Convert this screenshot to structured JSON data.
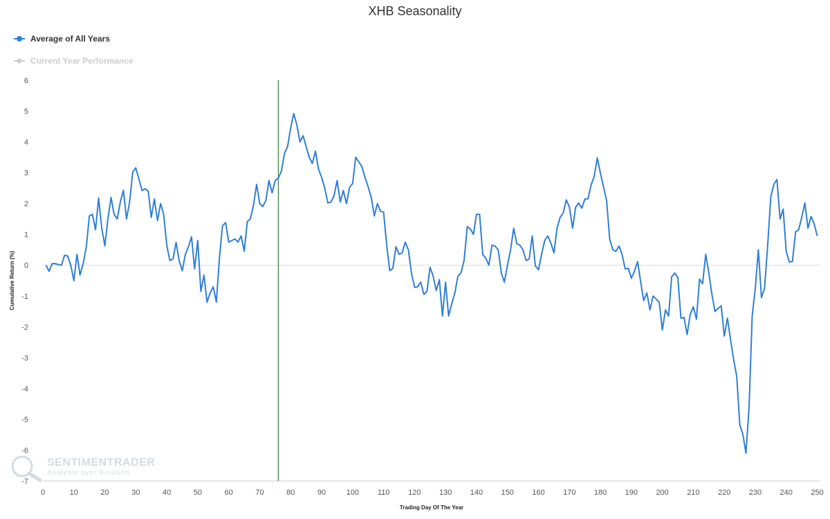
{
  "chart_data": {
    "type": "line",
    "title": "XHB Seasonality",
    "xlabel": "Trading Day Of The Year",
    "ylabel": "Cumulative Return (%)",
    "xlim": [
      0,
      251
    ],
    "ylim": [
      -7,
      6
    ],
    "x_ticks": [
      0,
      10,
      20,
      30,
      40,
      50,
      60,
      70,
      80,
      90,
      100,
      110,
      120,
      130,
      140,
      150,
      160,
      170,
      180,
      190,
      200,
      210,
      220,
      230,
      240,
      250
    ],
    "y_ticks": [
      6,
      5,
      4,
      3,
      2,
      1,
      0,
      -1,
      -2,
      -3,
      -4,
      -5,
      -6,
      -7
    ],
    "vertical_marker_x": 76,
    "legend_position": "top-left",
    "series": [
      {
        "name": "Average of All Years",
        "color": "#2f7ed8",
        "x_start": 1,
        "values": [
          0.0,
          -0.2,
          0.05,
          0.05,
          0.02,
          0.0,
          0.32,
          0.3,
          0.0,
          -0.5,
          0.35,
          -0.32,
          0.05,
          0.58,
          1.6,
          1.65,
          1.15,
          2.18,
          1.2,
          0.63,
          1.5,
          2.2,
          1.65,
          1.5,
          2.05,
          2.43,
          1.5,
          2.05,
          3.02,
          3.16,
          2.8,
          2.42,
          2.48,
          2.4,
          1.55,
          2.15,
          1.45,
          2.0,
          1.65,
          0.65,
          0.15,
          0.2,
          0.74,
          0.15,
          -0.18,
          0.35,
          0.6,
          0.92,
          -0.12,
          0.8,
          -0.85,
          -0.32,
          -1.2,
          -0.9,
          -0.7,
          -1.2,
          0.25,
          1.28,
          1.38,
          0.75,
          0.8,
          0.85,
          0.75,
          0.95,
          0.45,
          1.42,
          1.5,
          1.95,
          2.62,
          2.0,
          1.9,
          2.1,
          2.75,
          2.35,
          2.75,
          2.82,
          3.05,
          3.63,
          3.85,
          4.45,
          4.92,
          4.55,
          4.0,
          4.2,
          3.85,
          3.5,
          3.3,
          3.7,
          3.12,
          2.85,
          2.5,
          2.02,
          2.05,
          2.25,
          2.75,
          2.05,
          2.42,
          2.0,
          2.52,
          2.65,
          3.5,
          3.35,
          3.2,
          2.85,
          2.55,
          2.2,
          1.6,
          2.0,
          1.75,
          1.72,
          0.65,
          -0.18,
          -0.1,
          0.6,
          0.35,
          0.4,
          0.75,
          0.5,
          -0.25,
          -0.72,
          -0.7,
          -0.55,
          -0.95,
          -0.85,
          -0.07,
          -0.35,
          -0.82,
          -0.47,
          -1.65,
          -0.55,
          -1.65,
          -1.25,
          -0.9,
          -0.35,
          -0.25,
          0.15,
          1.25,
          1.18,
          1.0,
          1.65,
          1.65,
          0.35,
          0.22,
          0.0,
          0.65,
          0.62,
          0.5,
          -0.25,
          -0.55,
          0.0,
          0.5,
          1.2,
          0.7,
          0.65,
          0.5,
          0.15,
          0.2,
          0.95,
          -0.02,
          -0.15,
          0.35,
          0.8,
          0.95,
          0.72,
          0.4,
          1.2,
          1.55,
          1.7,
          2.12,
          1.88,
          1.2,
          1.88,
          2.02,
          1.85,
          2.15,
          2.15,
          2.6,
          2.88,
          3.48,
          2.98,
          2.55,
          2.1,
          0.85,
          0.5,
          0.45,
          0.62,
          0.35,
          -0.12,
          -0.1,
          -0.42,
          -0.2,
          0.12,
          -0.55,
          -1.15,
          -0.9,
          -1.45,
          -1.0,
          -1.1,
          -1.2,
          -2.1,
          -1.45,
          -1.65,
          -0.38,
          -0.25,
          -0.4,
          -1.72,
          -1.7,
          -2.25,
          -1.6,
          -1.35,
          -1.75,
          -0.45,
          -0.6,
          0.35,
          -0.25,
          -0.95,
          -1.5,
          -1.4,
          -1.32,
          -2.3,
          -1.72,
          -2.4,
          -3.05,
          -3.6,
          -5.18,
          -5.48,
          -6.1,
          -4.6,
          -1.65,
          -0.75,
          0.5,
          -1.05,
          -0.75,
          0.65,
          2.22,
          2.62,
          2.78,
          1.5,
          1.82,
          0.45,
          0.1,
          0.12,
          1.08,
          1.15,
          1.55,
          2.02,
          1.2,
          1.58,
          1.35,
          0.95
        ]
      },
      {
        "name": "Current Year Performance",
        "color": "#cccccc",
        "values": []
      }
    ]
  },
  "watermark": {
    "name": "SENTIMENTRADER",
    "tagline": "Analysis over Emotion"
  }
}
